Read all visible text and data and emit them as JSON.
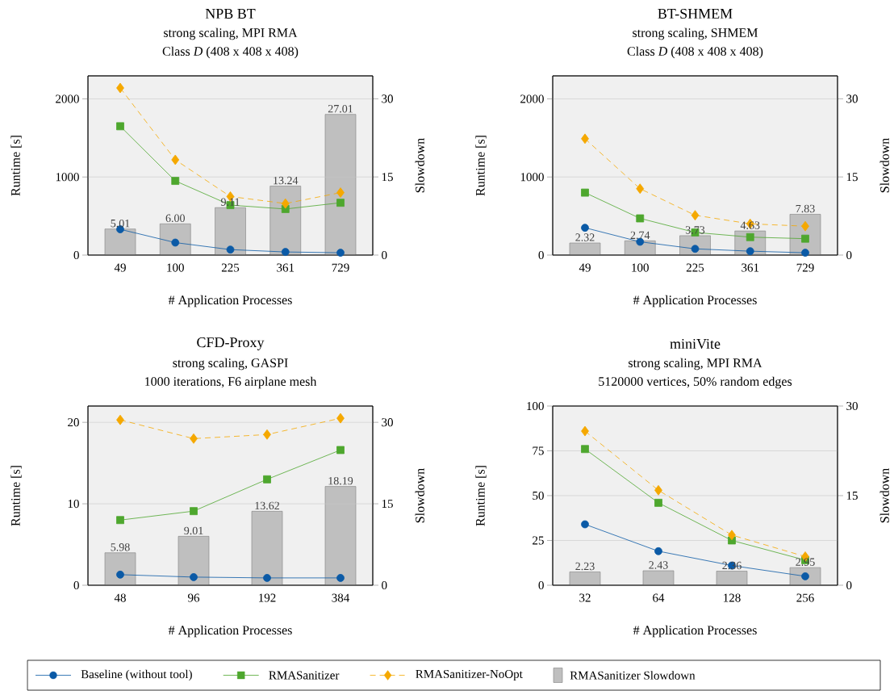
{
  "chart_data": [
    {
      "type": "line",
      "title": "NPB BT",
      "subtitle": "strong scaling, MPI RMA",
      "annotations": [
        "Class *D* (408 x 408 x 408)"
      ],
      "xlabel": "# Application Processes",
      "ylabel": "Runtime [s]",
      "y2label": "Slowdown",
      "categories": [
        "49",
        "100",
        "225",
        "361",
        "729"
      ],
      "ylim": [
        0,
        2295
      ],
      "yticks": [
        0,
        1000,
        2000
      ],
      "y2lim": [
        0,
        34.4
      ],
      "y2ticks": [
        0,
        15,
        30
      ],
      "grid": "y",
      "legend": "bottom",
      "series": [
        {
          "name": "Baseline (without tool)",
          "color": "#0b5aa6",
          "marker": "circle",
          "line_style": "solid",
          "values": [
            330,
            160,
            70,
            40,
            30
          ]
        },
        {
          "name": "RMASanitizer",
          "color": "#4ea72e",
          "marker": "square",
          "line_style": "solid",
          "values": [
            1650,
            950,
            640,
            590,
            670
          ]
        },
        {
          "name": "RMASanitizer-NoOpt",
          "color": "#f5a800",
          "marker": "diamond",
          "line_style": "dashed",
          "values": [
            2140,
            1220,
            750,
            660,
            800
          ]
        },
        {
          "name": "RMASanitizer Slowdown",
          "type": "bar",
          "axis": "y2",
          "color": "#bfbfbf",
          "values": [
            5.01,
            6.0,
            9.11,
            13.24,
            27.01
          ],
          "value_labels": [
            "5.01",
            "6.00",
            "9.11",
            "13.24",
            "27.01"
          ]
        }
      ]
    },
    {
      "type": "line",
      "title": "BT-SHMEM",
      "subtitle": "strong scaling, SHMEM",
      "annotations": [
        "Class *D* (408 x 408 x 408)"
      ],
      "xlabel": "# Application Processes",
      "ylabel": "Runtime [s]",
      "y2label": "Slowdown",
      "categories": [
        "49",
        "100",
        "225",
        "361",
        "729"
      ],
      "ylim": [
        0,
        2295
      ],
      "yticks": [
        0,
        1000,
        2000
      ],
      "y2lim": [
        0,
        34.4
      ],
      "y2ticks": [
        0,
        15,
        30
      ],
      "grid": "y",
      "series": [
        {
          "color": "#0b5aa6",
          "marker": "circle",
          "line_style": "solid",
          "values": [
            350,
            170,
            80,
            50,
            30
          ]
        },
        {
          "color": "#4ea72e",
          "marker": "square",
          "line_style": "solid",
          "values": [
            800,
            470,
            290,
            230,
            210
          ]
        },
        {
          "color": "#f5a800",
          "marker": "diamond",
          "line_style": "dashed",
          "values": [
            1490,
            850,
            510,
            400,
            370
          ]
        },
        {
          "type": "bar",
          "axis": "y2",
          "color": "#bfbfbf",
          "values": [
            2.32,
            2.74,
            3.73,
            4.63,
            7.83
          ],
          "value_labels": [
            "2.32",
            "2.74",
            "3.73",
            "4.63",
            "7.83"
          ]
        }
      ]
    },
    {
      "type": "line",
      "title": "CFD-Proxy",
      "subtitle": "strong scaling, GASPI",
      "annotations": [
        "1000 iterations, F6 airplane mesh"
      ],
      "xlabel": "# Application Processes",
      "ylabel": "Runtime [s]",
      "y2label": "Slowdown",
      "categories": [
        "48",
        "96",
        "192",
        "384"
      ],
      "ylim": [
        0,
        22
      ],
      "yticks": [
        0,
        10,
        20
      ],
      "y2lim": [
        0,
        33
      ],
      "y2ticks": [
        0,
        15,
        30
      ],
      "grid": "y",
      "series": [
        {
          "color": "#0b5aa6",
          "marker": "circle",
          "line_style": "solid",
          "values": [
            1.3,
            1.0,
            0.9,
            0.9
          ]
        },
        {
          "color": "#4ea72e",
          "marker": "square",
          "line_style": "solid",
          "values": [
            8.0,
            9.1,
            13.0,
            16.6
          ]
        },
        {
          "color": "#f5a800",
          "marker": "diamond",
          "line_style": "dashed",
          "values": [
            20.3,
            18.0,
            18.5,
            20.5
          ]
        },
        {
          "type": "bar",
          "axis": "y2",
          "color": "#bfbfbf",
          "values": [
            5.98,
            9.01,
            13.62,
            18.19
          ],
          "value_labels": [
            "5.98",
            "9.01",
            "13.62",
            "18.19"
          ]
        }
      ]
    },
    {
      "type": "line",
      "title": "miniVite",
      "subtitle": "strong scaling, MPI RMA",
      "annotations": [
        "5120000 vertices, 50% random edges"
      ],
      "xlabel": "# Application Processes",
      "ylabel": "Runtime [s]",
      "y2label": "Slowdown",
      "categories": [
        "32",
        "64",
        "128",
        "256"
      ],
      "ylim": [
        0,
        100
      ],
      "yticks": [
        0,
        25,
        50,
        75,
        100
      ],
      "y2lim": [
        0,
        30
      ],
      "y2ticks": [
        0,
        15,
        30
      ],
      "grid": "y",
      "series": [
        {
          "color": "#0b5aa6",
          "marker": "circle",
          "line_style": "solid",
          "values": [
            34,
            19,
            11,
            5
          ]
        },
        {
          "color": "#4ea72e",
          "marker": "square",
          "line_style": "solid",
          "values": [
            76,
            46,
            25,
            14
          ]
        },
        {
          "color": "#f5a800",
          "marker": "diamond",
          "line_style": "dashed",
          "values": [
            86,
            53,
            28,
            16
          ]
        },
        {
          "type": "bar",
          "axis": "y2",
          "color": "#bfbfbf",
          "values": [
            2.23,
            2.43,
            2.36,
            2.95
          ],
          "value_labels": [
            "2.23",
            "2.43",
            "2.36",
            "2.95"
          ]
        }
      ]
    }
  ]
}
